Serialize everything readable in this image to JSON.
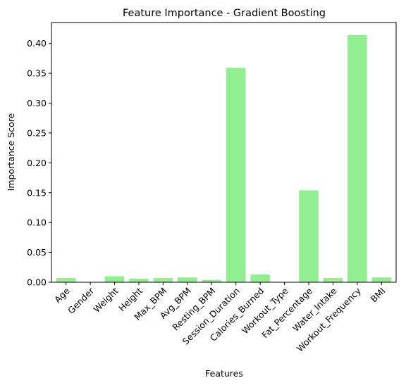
{
  "chart_data": {
    "type": "bar",
    "title": "Feature Importance - Gradient Boosting",
    "xlabel": "Features",
    "ylabel": "Importance Score",
    "categories": [
      "Age",
      "Gender",
      "Weight",
      "Height",
      "Max_BPM",
      "Avg_BPM",
      "Resting_BPM",
      "Session_Duration",
      "Calories_Burned",
      "Workout_Type",
      "Fat_Percentage",
      "Water_Intake",
      "Workout_Frequency",
      "BMI"
    ],
    "values": [
      0.007,
      0.0,
      0.01,
      0.006,
      0.007,
      0.008,
      0.004,
      0.359,
      0.013,
      0.0,
      0.154,
      0.007,
      0.414,
      0.008
    ],
    "ylim": [
      0,
      0.435
    ],
    "yticks": [
      0.0,
      0.05,
      0.1,
      0.15,
      0.2,
      0.25,
      0.3,
      0.35,
      0.4
    ],
    "ytick_labels": [
      "0.00",
      "0.05",
      "0.10",
      "0.15",
      "0.20",
      "0.25",
      "0.30",
      "0.35",
      "0.40"
    ],
    "bar_color": "#90ee90",
    "grid": false,
    "xtick_rotation_deg": 45
  }
}
